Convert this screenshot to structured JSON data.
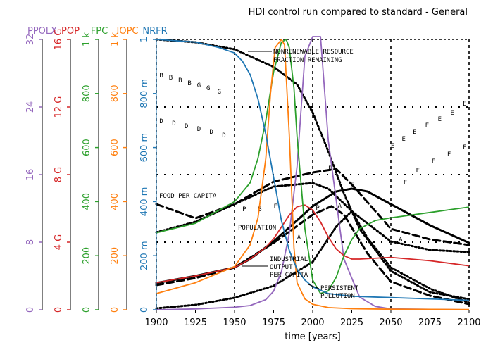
{
  "chart_data": {
    "type": "line",
    "title": "HDI control run compared to standard - General",
    "xlabel": "time [years]",
    "xlim": [
      1900,
      2100
    ],
    "x_ticks": [
      "1900",
      "1925",
      "1950",
      "1975",
      "2000",
      "2025",
      "2050",
      "2075",
      "2100"
    ],
    "axes": [
      {
        "name": "PPOLX",
        "color": "#9467bd",
        "ticks": [
          "0",
          "8",
          "16",
          "24",
          "32"
        ],
        "range": [
          0,
          32
        ]
      },
      {
        "name": "POP",
        "color": "#d62728",
        "ticks": [
          "0",
          "4 G",
          "8 G",
          "12 G",
          "16 G"
        ],
        "range": [
          0,
          16000000000
        ]
      },
      {
        "name": "FPC",
        "color": "#2ca02c",
        "ticks": [
          "0",
          "200",
          "400",
          "600",
          "800",
          "1 k"
        ],
        "range": [
          0,
          1000
        ]
      },
      {
        "name": "IOPC",
        "color": "#ff7f0e",
        "ticks": [
          "0",
          "200",
          "400",
          "600",
          "800",
          "1 k"
        ],
        "range": [
          0,
          1000
        ]
      },
      {
        "name": "NRFR",
        "color": "#1f77b4",
        "ticks": [
          "0",
          "200 m",
          "400 m",
          "600 m",
          "800 m",
          "1"
        ],
        "range": [
          0,
          1
        ]
      }
    ],
    "series": [
      {
        "name": "PPOLX",
        "color": "#9467bd",
        "x": [
          1900,
          1925,
          1950,
          1960,
          1970,
          1975,
          1980,
          1985,
          1990,
          1995,
          2000,
          2005,
          2010,
          2020,
          2030,
          2040,
          2050,
          2100
        ],
        "values": [
          0,
          0.1,
          0.3,
          0.5,
          1.2,
          2.2,
          4.5,
          9,
          17,
          30,
          40,
          33,
          20,
          6,
          1.5,
          0.4,
          0.1,
          0
        ]
      },
      {
        "name": "POP",
        "color": "#d62728",
        "x": [
          1900,
          1925,
          1950,
          1960,
          1970,
          1975,
          1980,
          1985,
          1990,
          1995,
          2000,
          2005,
          2010,
          2015,
          2020,
          2025,
          2030,
          2050,
          2075,
          2100
        ],
        "values": [
          1600000000.0,
          2000000000.0,
          2500000000.0,
          3000000000.0,
          3700000000.0,
          4200000000.0,
          4900000000.0,
          5600000000.0,
          6100000000.0,
          6200000000.0,
          5900000000.0,
          5200000000.0,
          4300000000.0,
          3600000000.0,
          3200000000.0,
          3000000000.0,
          3000000000.0,
          3100000000.0,
          2900000000.0,
          2600000000.0
        ]
      },
      {
        "name": "FPC",
        "color": "#2ca02c",
        "x": [
          1900,
          1925,
          1950,
          1960,
          1965,
          1970,
          1975,
          1980,
          1983,
          1985,
          1988,
          1990,
          1995,
          2000,
          2005,
          2010,
          2015,
          2020,
          2025,
          2030,
          2040,
          2050,
          2075,
          2100
        ],
        "values": [
          285,
          320,
          400,
          470,
          560,
          700,
          880,
          990,
          1000,
          970,
          820,
          640,
          300,
          110,
          60,
          70,
          120,
          200,
          260,
          300,
          330,
          340,
          360,
          380
        ]
      },
      {
        "name": "IOPC",
        "color": "#ff7f0e",
        "x": [
          1900,
          1925,
          1950,
          1960,
          1965,
          1970,
          1973,
          1976,
          1980,
          1982,
          1985,
          1988,
          1990,
          1995,
          2000,
          2010,
          2025,
          2050,
          2100
        ],
        "values": [
          60,
          100,
          160,
          240,
          340,
          560,
          800,
          970,
          1000,
          980,
          650,
          230,
          100,
          40,
          20,
          8,
          4,
          2,
          1
        ]
      },
      {
        "name": "NRFR",
        "color": "#1f77b4",
        "x": [
          1900,
          1925,
          1940,
          1950,
          1955,
          1960,
          1965,
          1970,
          1975,
          1980,
          1985,
          1990,
          1995,
          2000,
          2010,
          2025,
          2050,
          2075,
          2100
        ],
        "values": [
          1.0,
          0.99,
          0.97,
          0.95,
          0.92,
          0.87,
          0.78,
          0.65,
          0.49,
          0.33,
          0.22,
          0.15,
          0.11,
          0.085,
          0.06,
          0.05,
          0.045,
          0.04,
          0.035
        ]
      }
    ],
    "annotations": [
      "NONRENEWABLE RESOURCE",
      "FRACTION REMAINING",
      "FOOD PER CAPITA",
      "POPULATION",
      "INDUSTRIAL",
      "OUTPUT",
      "PER CAPITA",
      "PERSISTENT",
      "POLLUTION"
    ],
    "grid": true
  }
}
